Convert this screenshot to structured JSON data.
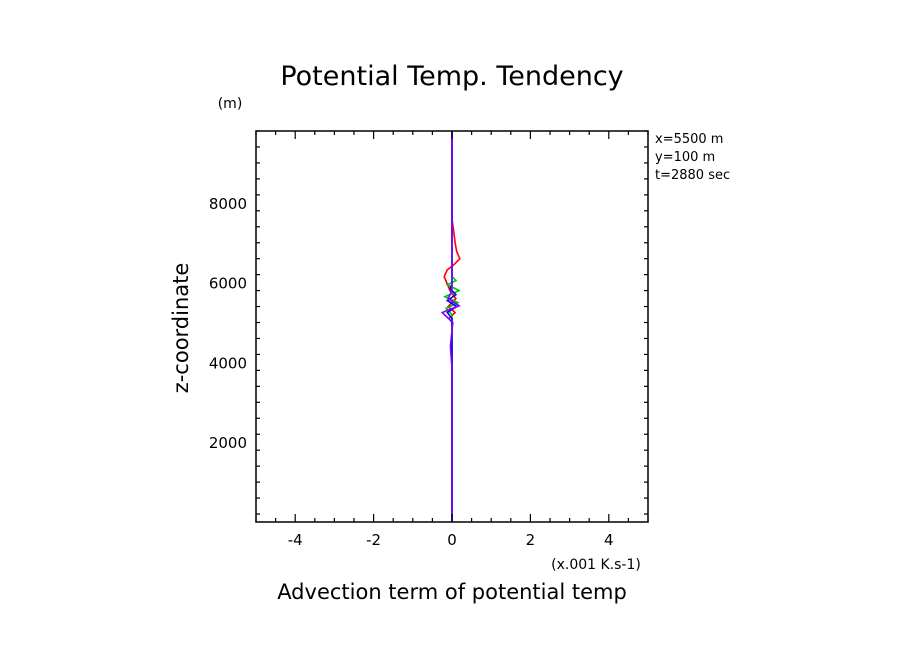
{
  "chart_data": {
    "type": "line",
    "title": "Potential Temp. Tendency",
    "xlabel": "Advection term of potential temp",
    "ylabel": "z-coordinate",
    "x_units": "(x.001 K.s-1)",
    "y_units": "(m)",
    "xlim": [
      -5,
      5
    ],
    "ylim": [
      0,
      9800
    ],
    "xticks": [
      -4,
      -2,
      0,
      2,
      4
    ],
    "xtick_labels": [
      "-4",
      "-2",
      "0",
      "2",
      "4"
    ],
    "yticks": [
      2000,
      4000,
      6000,
      8000
    ],
    "ytick_labels": [
      "2000",
      "4000",
      "6000",
      "8000"
    ],
    "grid": false,
    "legend": "none",
    "info": [
      "x=5500 m",
      "y=100 m",
      "t=2880 sec"
    ],
    "series": [
      {
        "color": "#ff0000",
        "points": [
          [
            0,
            0
          ],
          [
            0,
            5000
          ],
          [
            -0.08,
            5100
          ],
          [
            0.08,
            5250
          ],
          [
            -0.1,
            5400
          ],
          [
            0.1,
            5600
          ],
          [
            -0.05,
            5800
          ],
          [
            -0.2,
            6150
          ],
          [
            -0.12,
            6320
          ],
          [
            0.05,
            6450
          ],
          [
            0.2,
            6600
          ],
          [
            0.12,
            6780
          ],
          [
            0.08,
            7000
          ],
          [
            0.04,
            7300
          ],
          [
            0,
            7600
          ],
          [
            0,
            9800
          ]
        ]
      },
      {
        "color": "#00c800",
        "points": [
          [
            0,
            0
          ],
          [
            0,
            5200
          ],
          [
            -0.15,
            5350
          ],
          [
            0.15,
            5500
          ],
          [
            -0.18,
            5650
          ],
          [
            0.18,
            5800
          ],
          [
            -0.12,
            5950
          ],
          [
            0.1,
            6050
          ],
          [
            0,
            6150
          ],
          [
            0,
            9800
          ]
        ]
      },
      {
        "color": "#0000ff",
        "points": [
          [
            0,
            0
          ],
          [
            0,
            5100
          ],
          [
            -0.12,
            5250
          ],
          [
            0.12,
            5400
          ],
          [
            -0.12,
            5550
          ],
          [
            0.1,
            5700
          ],
          [
            -0.05,
            5850
          ],
          [
            0,
            5950
          ],
          [
            0,
            9800
          ]
        ]
      },
      {
        "color": "#8000ff",
        "points": [
          [
            0,
            0
          ],
          [
            0,
            3850
          ],
          [
            -0.04,
            4400
          ],
          [
            0.02,
            5000
          ],
          [
            -0.25,
            5250
          ],
          [
            0.18,
            5420
          ],
          [
            -0.1,
            5600
          ],
          [
            0,
            5800
          ],
          [
            0,
            9800
          ]
        ]
      }
    ]
  }
}
